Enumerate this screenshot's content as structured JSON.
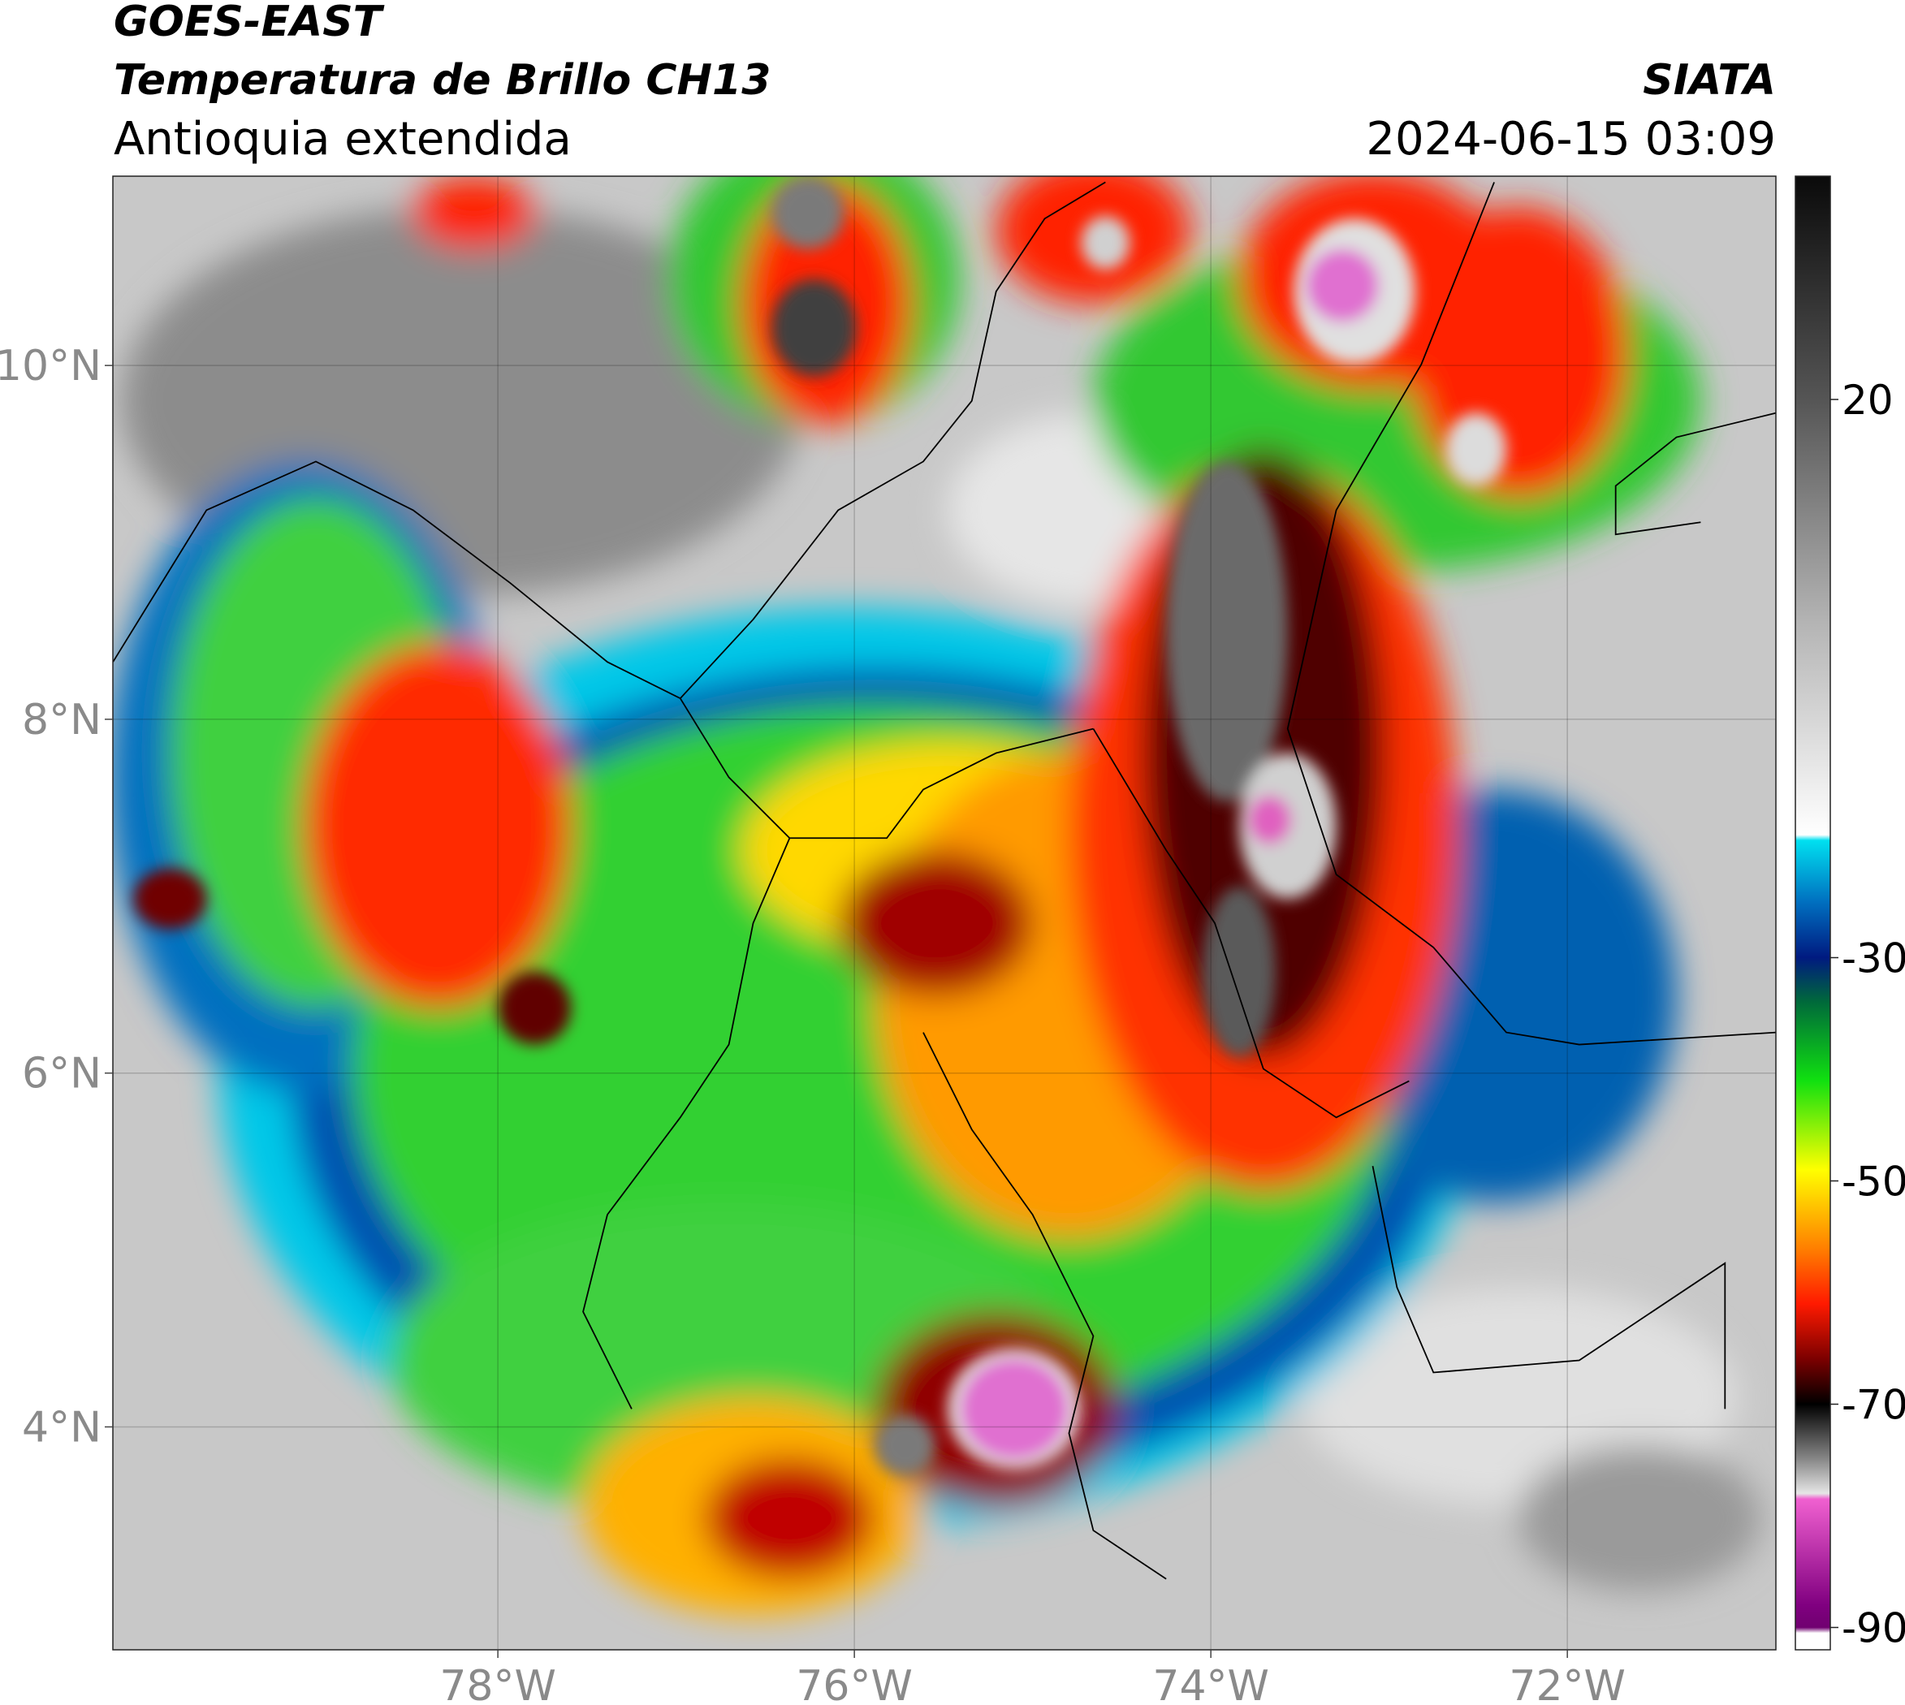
{
  "header": {
    "title": "GOES-EAST",
    "subtitle": "Temperatura de Brillo CH13",
    "region": "Antioquia extendida",
    "source": "SIATA",
    "datetime": "2024-06-15 03:09"
  },
  "map": {
    "xlim": [
      -80.16,
      -70.83
    ],
    "ylim": [
      2.74,
      11.07
    ],
    "xticks": [
      {
        "value": -78,
        "label": "78°W"
      },
      {
        "value": -76,
        "label": "76°W"
      },
      {
        "value": -74,
        "label": "74°W"
      },
      {
        "value": -72,
        "label": "72°W"
      }
    ],
    "yticks": [
      {
        "value": 10,
        "label": "10°N"
      },
      {
        "value": 8,
        "label": "8°N"
      },
      {
        "value": 6,
        "label": "6°N"
      },
      {
        "value": 4,
        "label": "4°N"
      }
    ],
    "grid": true
  },
  "colorbar": {
    "lim": [
      40,
      -92
    ],
    "ticks": [
      20,
      -30,
      -50,
      -70,
      -90
    ],
    "colors": [
      {
        "value": 40,
        "color": "#0a0a0a"
      },
      {
        "value": 20,
        "color": "#555555"
      },
      {
        "value": 0,
        "color": "#b4b4b4"
      },
      {
        "value": -19,
        "color": "#ffffff"
      },
      {
        "value": -19.5,
        "color": "#00e0f0"
      },
      {
        "value": -25,
        "color": "#0070c0"
      },
      {
        "value": -30,
        "color": "#001a80"
      },
      {
        "value": -34,
        "color": "#006a3a"
      },
      {
        "value": -41,
        "color": "#10e010"
      },
      {
        "value": -49,
        "color": "#ffff00"
      },
      {
        "value": -56,
        "color": "#ff8000"
      },
      {
        "value": -61,
        "color": "#ff1a00"
      },
      {
        "value": -66,
        "color": "#7a0000"
      },
      {
        "value": -70,
        "color": "#000000"
      },
      {
        "value": -75,
        "color": "#8a8a8a"
      },
      {
        "value": -78,
        "color": "#e6e6e6"
      },
      {
        "value": -78.5,
        "color": "#f060d0"
      },
      {
        "value": -88,
        "color": "#800080"
      },
      {
        "value": -90,
        "color": "#700070"
      },
      {
        "value": -90.5,
        "color": "#ffffff"
      }
    ]
  }
}
